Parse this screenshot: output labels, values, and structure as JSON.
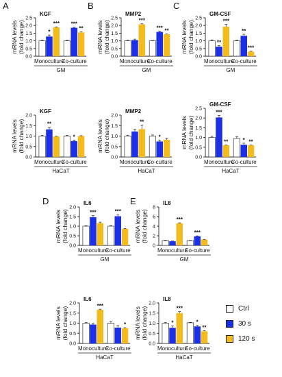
{
  "colors": {
    "ctrl": "#ffffff",
    "s30": "#1a2fe6",
    "s120": "#f2bb1e",
    "axis": "#222222"
  },
  "legend": [
    {
      "label": "Ctrl",
      "color": "#ffffff"
    },
    {
      "label": "30 s",
      "color": "#1a2fe6"
    },
    {
      "label": "120 s",
      "color": "#f2bb1e"
    }
  ],
  "chart_data": [
    {
      "type": "bar",
      "panel_letter": "A",
      "title": "KGF",
      "ylabel": "mRNA levels\n(fold change)",
      "ylim": [
        0,
        2.5
      ],
      "yticks": [
        "0.0",
        "0.5",
        "1.0",
        "1.5",
        "2.0",
        "2.5"
      ],
      "categories": [
        "Monoculture",
        "Co-culture"
      ],
      "group_label": "GM",
      "series": [
        {
          "name": "Ctrl",
          "values": [
            1.0,
            1.0
          ],
          "err": [
            0.05,
            0.05
          ],
          "sig": [
            "",
            ""
          ]
        },
        {
          "name": "30 s",
          "values": [
            1.28,
            1.85
          ],
          "err": [
            0.1,
            0.05
          ],
          "sig": [
            "*",
            "***"
          ]
        },
        {
          "name": "120 s",
          "values": [
            1.88,
            1.55
          ],
          "err": [
            0.03,
            0.05
          ],
          "sig": [
            "***",
            "**"
          ]
        }
      ]
    },
    {
      "type": "bar",
      "panel_letter": "B",
      "title": "MMP2",
      "ylabel": "mRNA levels\n(fold change)",
      "ylim": [
        0,
        2.5
      ],
      "yticks": [
        "0.0",
        "0.5",
        "1.0",
        "1.5",
        "2.0",
        "2.5"
      ],
      "categories": [
        "Monoculture",
        "Co-culture"
      ],
      "group_label": "GM",
      "series": [
        {
          "name": "Ctrl",
          "values": [
            1.0,
            1.0
          ],
          "err": [
            0.04,
            0.02
          ],
          "sig": [
            "",
            ""
          ]
        },
        {
          "name": "30 s",
          "values": [
            1.05,
            1.58
          ],
          "err": [
            0.06,
            0.06
          ],
          "sig": [
            "",
            "***"
          ]
        },
        {
          "name": "120 s",
          "values": [
            2.08,
            1.43
          ],
          "err": [
            0.03,
            0.03
          ],
          "sig": [
            "***",
            "**"
          ]
        }
      ]
    },
    {
      "type": "bar",
      "panel_letter": "C",
      "title": "GM-CSF",
      "ylabel": "mRNA levels\n(fold change)",
      "ylim": [
        0,
        2.5
      ],
      "yticks": [
        "0.0",
        "0.5",
        "1.0",
        "1.5",
        "2.0",
        "2.5"
      ],
      "categories": [
        "Monoculture",
        "Co-culture"
      ],
      "group_label": "GM",
      "series": [
        {
          "name": "Ctrl",
          "values": [
            1.0,
            1.0
          ],
          "err": [
            0.06,
            0.05
          ],
          "sig": [
            "",
            ""
          ]
        },
        {
          "name": "30 s",
          "values": [
            0.62,
            1.33
          ],
          "err": [
            0.07,
            0.1
          ],
          "sig": [
            "**",
            "**"
          ]
        },
        {
          "name": "120 s",
          "values": [
            1.92,
            0.3
          ],
          "err": [
            0.15,
            0.03
          ],
          "sig": [
            "***",
            "***"
          ]
        }
      ]
    },
    {
      "type": "bar",
      "title": "KGF",
      "ylabel": "mRNA levels\n(fold change)",
      "ylim": [
        0,
        2.0
      ],
      "yticks": [
        "0.0",
        "0.5",
        "1.0",
        "1.5",
        "2.0"
      ],
      "categories": [
        "Monoculture",
        "Co-culture"
      ],
      "group_label": "HaCaT",
      "series": [
        {
          "name": "Ctrl",
          "values": [
            1.0,
            1.0
          ],
          "err": [
            0.04,
            0.03
          ],
          "sig": [
            "",
            ""
          ]
        },
        {
          "name": "30 s",
          "values": [
            1.32,
            0.76
          ],
          "err": [
            0.1,
            0.05
          ],
          "sig": [
            "**",
            "*"
          ]
        },
        {
          "name": "120 s",
          "values": [
            0.98,
            1.0
          ],
          "err": [
            0.02,
            0.02
          ],
          "sig": [
            "",
            ""
          ]
        }
      ]
    },
    {
      "type": "bar",
      "title": "MMP2",
      "ylabel": "mRNA levels\n(fold change)",
      "ylim": [
        0,
        2.0
      ],
      "yticks": [
        "0.0",
        "0.5",
        "1.0",
        "1.5",
        "2.0"
      ],
      "categories": [
        "Monoculture",
        "Co-culture"
      ],
      "group_label": "HaCaT",
      "series": [
        {
          "name": "Ctrl",
          "values": [
            1.0,
            1.0
          ],
          "err": [
            0.04,
            0.05
          ],
          "sig": [
            "",
            ""
          ]
        },
        {
          "name": "30 s",
          "values": [
            1.22,
            0.74
          ],
          "err": [
            0.1,
            0.07
          ],
          "sig": [
            "",
            "*"
          ]
        },
        {
          "name": "120 s",
          "values": [
            1.33,
            0.82
          ],
          "err": [
            0.2,
            0.08
          ],
          "sig": [
            "**",
            ""
          ]
        }
      ]
    },
    {
      "type": "bar",
      "title": "GM-CSF",
      "ylabel": "mRNA levels\n(fold change)",
      "ylim": [
        0,
        2.5
      ],
      "yticks": [
        "0.0",
        "0.5",
        "1.0",
        "1.5",
        "2.0",
        "2.5"
      ],
      "categories": [
        "Monoculture",
        "Co-culture"
      ],
      "group_label": "HaCaT",
      "series": [
        {
          "name": "Ctrl",
          "values": [
            1.0,
            0.95
          ],
          "err": [
            0.06,
            0.1
          ],
          "sig": [
            "",
            ""
          ]
        },
        {
          "name": "30 s",
          "values": [
            2.03,
            0.63
          ],
          "err": [
            0.1,
            0.08
          ],
          "sig": [
            "***",
            "*"
          ]
        },
        {
          "name": "120 s",
          "values": [
            0.6,
            0.6
          ],
          "err": [
            0.02,
            0.02
          ],
          "sig": [
            "**",
            "**"
          ]
        }
      ]
    },
    {
      "type": "bar",
      "panel_letter": "D",
      "title": "IL6",
      "ylabel": "mRNA levels\n(fold change)",
      "ylim": [
        0,
        2.0
      ],
      "yticks": [
        "0.0",
        "0.5",
        "1.0",
        "1.5",
        "2.0"
      ],
      "categories": [
        "Monoculture",
        "Co-culture"
      ],
      "group_label": "GM",
      "series": [
        {
          "name": "Ctrl",
          "values": [
            1.0,
            1.0
          ],
          "err": [
            0.03,
            0.04
          ],
          "sig": [
            "",
            ""
          ]
        },
        {
          "name": "30 s",
          "values": [
            1.47,
            1.52
          ],
          "err": [
            0.08,
            0.08
          ],
          "sig": [
            "***",
            "***"
          ]
        },
        {
          "name": "120 s",
          "values": [
            1.16,
            0.86
          ],
          "err": [
            0.05,
            0.02
          ],
          "sig": [
            "",
            ""
          ]
        }
      ]
    },
    {
      "type": "bar",
      "panel_letter": "E",
      "title": "IL8",
      "ylabel": "mRNA levels\n(fold change)",
      "ylim": [
        0,
        8
      ],
      "yticks": [
        "0",
        "2",
        "4",
        "6",
        "8"
      ],
      "categories": [
        "Monoculture",
        "Co-culture"
      ],
      "group_label": "GM",
      "series": [
        {
          "name": "Ctrl",
          "values": [
            1.0,
            1.0
          ],
          "err": [
            0.08,
            0.05
          ],
          "sig": [
            "",
            ""
          ]
        },
        {
          "name": "30 s",
          "values": [
            0.85,
            1.9
          ],
          "err": [
            0.08,
            0.08
          ],
          "sig": [
            "",
            "***"
          ]
        },
        {
          "name": "120 s",
          "values": [
            4.6,
            1.2
          ],
          "err": [
            0.1,
            0.05
          ],
          "sig": [
            "***",
            ""
          ]
        }
      ]
    },
    {
      "type": "bar",
      "title": "IL6",
      "ylabel": "mRNA levels\n(fold change)",
      "ylim": [
        0,
        2.0
      ],
      "yticks": [
        "0.0",
        "0.5",
        "1.0",
        "1.5",
        "2.0"
      ],
      "categories": [
        "Monoculture",
        "Co-culture"
      ],
      "group_label": "HaCaT",
      "series": [
        {
          "name": "Ctrl",
          "values": [
            1.0,
            1.0
          ],
          "err": [
            0.04,
            0.08
          ],
          "sig": [
            "",
            ""
          ]
        },
        {
          "name": "30 s",
          "values": [
            0.93,
            0.78
          ],
          "err": [
            0.06,
            0.1
          ],
          "sig": [
            "",
            ""
          ]
        },
        {
          "name": "120 s",
          "values": [
            1.66,
            0.75
          ],
          "err": [
            0.03,
            0.03
          ],
          "sig": [
            "***",
            "*"
          ]
        }
      ]
    },
    {
      "type": "bar",
      "title": "IL8",
      "ylabel": "mRNA levels\n(fold change)",
      "ylim": [
        0,
        2.0
      ],
      "yticks": [
        "0.0",
        "0.5",
        "1.0",
        "1.5",
        "2.0"
      ],
      "categories": [
        "Monoculture",
        "Co-culture"
      ],
      "group_label": "HaCaT",
      "series": [
        {
          "name": "Ctrl",
          "values": [
            1.0,
            1.02
          ],
          "err": [
            0.03,
            0.02
          ],
          "sig": [
            "",
            ""
          ]
        },
        {
          "name": "30 s",
          "values": [
            0.77,
            0.84
          ],
          "err": [
            0.1,
            0.05
          ],
          "sig": [
            "*",
            "*"
          ]
        },
        {
          "name": "120 s",
          "values": [
            1.5,
            0.6
          ],
          "err": [
            0.07,
            0.03
          ],
          "sig": [
            "***",
            "**"
          ]
        }
      ]
    }
  ]
}
